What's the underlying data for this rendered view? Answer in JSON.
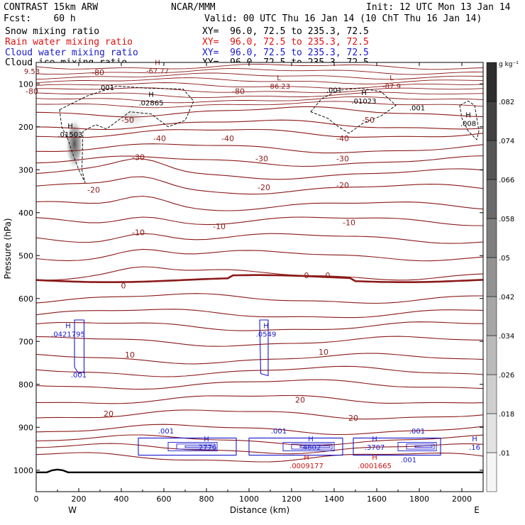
{
  "header": {
    "model": "CONTRAST 15km ARW",
    "org": "NCAR/MMM",
    "init": "Init: 12 UTC Mon 13 Jan 14",
    "fcst": "Fcst:    60 h",
    "valid": "Valid: 00 UTC Thu 16 Jan 14 (10 ChT Thu 16 Jan 14)",
    "fields": [
      {
        "name": "Snow mixing ratio",
        "xy": "XY=  96.0, 72.5 to 235.3, 72.5",
        "color": "#000000"
      },
      {
        "name": "Rain water mixing ratio",
        "xy": "XY=  96.0, 72.5 to 235.3, 72.5",
        "color": "#e01010"
      },
      {
        "name": "Cloud water mixing ratio",
        "xy": "XY=  96.0, 72.5 to 235.3, 72.5",
        "color": "#1a1acd"
      },
      {
        "name": "Cloud ice mixing ratio",
        "xy": "XY=  96.0, 72.5 to 235.3, 72.5",
        "color": "#000000"
      }
    ]
  },
  "chart_data": {
    "type": "cross-section contour",
    "xlabel": "Distance (km)",
    "ylabel": "Pressure (hPa)",
    "xlim": [
      0,
      2100
    ],
    "ylim": [
      1050,
      50
    ],
    "x_ticks": [
      0,
      200,
      400,
      600,
      800,
      1000,
      1200,
      1400,
      1600,
      1800,
      2000
    ],
    "y_ticks": [
      100,
      200,
      300,
      400,
      500,
      600,
      700,
      800,
      900,
      1000
    ],
    "endpoints": {
      "left": "W",
      "right": "E"
    },
    "colorbar": {
      "unit": "g kg⁻¹",
      "levels": [
        ".01",
        ".018",
        ".026",
        ".034",
        ".042",
        ".05",
        ".058",
        ".066",
        ".074",
        ".082"
      ]
    },
    "temperature_labels": [
      {
        "text": "-80",
        "x": 290,
        "p": 73
      },
      {
        "text": "-80",
        "x": -20,
        "p": 117
      },
      {
        "text": "-80",
        "x": 950,
        "p": 117
      },
      {
        "text": "-50",
        "x": 430,
        "p": 184
      },
      {
        "text": "-50",
        "x": 1560,
        "p": 184
      },
      {
        "text": "-40",
        "x": 580,
        "p": 227
      },
      {
        "text": "-40",
        "x": 900,
        "p": 227
      },
      {
        "text": "-40",
        "x": 1440,
        "p": 227
      },
      {
        "text": "-30",
        "x": 480,
        "p": 271
      },
      {
        "text": "-30",
        "x": 1060,
        "p": 274
      },
      {
        "text": "-30",
        "x": 1440,
        "p": 274
      },
      {
        "text": "-20",
        "x": 270,
        "p": 347
      },
      {
        "text": "-20",
        "x": 1070,
        "p": 341
      },
      {
        "text": "-20",
        "x": 1440,
        "p": 336
      },
      {
        "text": "-10",
        "x": 480,
        "p": 446
      },
      {
        "text": "-10",
        "x": 860,
        "p": 432
      },
      {
        "text": "-10",
        "x": 1470,
        "p": 423
      },
      {
        "text": "0",
        "x": 410,
        "p": 570
      },
      {
        "text": "0",
        "x": 1270,
        "p": 546
      },
      {
        "text": "0",
        "x": 1370,
        "p": 546
      },
      {
        "text": "10",
        "x": 440,
        "p": 731
      },
      {
        "text": "10",
        "x": 1350,
        "p": 724
      },
      {
        "text": "20",
        "x": 340,
        "p": 868
      },
      {
        "text": "20",
        "x": 1240,
        "p": 836
      },
      {
        "text": "20",
        "x": 1490,
        "p": 878
      }
    ],
    "max_min_labels": [
      {
        "mark": "H",
        "value": "-67.77",
        "x": 570,
        "p": 62,
        "color": "darkred"
      },
      {
        "mark": "L",
        "value": "-86.23",
        "x": 1140,
        "p": 98,
        "color": "darkred"
      },
      {
        "mark": "L",
        "value": "-87.9",
        "x": 1670,
        "p": 98,
        "color": "darkred"
      },
      {
        "mark": "H",
        "value": ".02865",
        "x": 540,
        "p": 137,
        "color": "black"
      },
      {
        "mark": "H",
        "value": ".01023",
        "x": 1540,
        "p": 133,
        "color": "black"
      },
      {
        "mark": "H",
        "value": ".008",
        "x": 2030,
        "p": 185,
        "color": "black"
      },
      {
        "mark": "H",
        "value": ".01503",
        "x": 160,
        "p": 210,
        "color": "black"
      },
      {
        "mark": "H",
        "value": ".0421795",
        "x": 150,
        "p": 676,
        "color": "blue"
      },
      {
        "mark": "H",
        "value": ".0549",
        "x": 1080,
        "p": 676,
        "color": "blue"
      },
      {
        "mark": "H",
        "value": ".2776",
        "x": 800,
        "p": 939,
        "color": "blue"
      },
      {
        "mark": "H",
        "value": ".4802",
        "x": 1290,
        "p": 939,
        "color": "blue"
      },
      {
        "mark": "H",
        "value": ".0009177",
        "x": 1270,
        "p": 982,
        "color": "red"
      },
      {
        "mark": "H",
        "value": ".3707",
        "x": 1590,
        "p": 939,
        "color": "blue"
      },
      {
        "mark": "H",
        "value": ".0001665",
        "x": 1590,
        "p": 982,
        "color": "red"
      },
      {
        "mark": "H",
        "value": ".16",
        "x": 2060,
        "p": 939,
        "color": "blue"
      }
    ],
    "contour_level_labels": [
      {
        "text": "9.53",
        "x": -20,
        "p": 70,
        "color": "darkred"
      },
      {
        "text": ".001",
        "x": 330,
        "p": 108,
        "color": "black"
      },
      {
        "text": ".001",
        "x": 1400,
        "p": 114,
        "color": "black"
      },
      {
        "text": ".001",
        "x": 1790,
        "p": 155,
        "color": "black"
      },
      {
        "text": ".001",
        "x": 200,
        "p": 777,
        "color": "blue"
      },
      {
        "text": ".001",
        "x": 610,
        "p": 908,
        "color": "blue"
      },
      {
        "text": ".001",
        "x": 1140,
        "p": 908,
        "color": "blue"
      },
      {
        "text": ".001",
        "x": 1790,
        "p": 908,
        "color": "blue"
      },
      {
        "text": ".001",
        "x": 1750,
        "p": 975,
        "color": "blue"
      }
    ]
  }
}
